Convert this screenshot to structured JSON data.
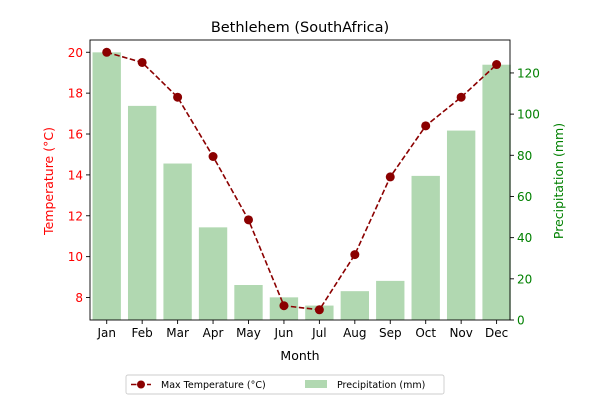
{
  "chart_data": {
    "type": "bar+line",
    "title": "Bethlehem (SouthAfrica)",
    "xlabel": "Month",
    "categories": [
      "Jan",
      "Feb",
      "Mar",
      "Apr",
      "May",
      "Jun",
      "Jul",
      "Aug",
      "Sep",
      "Oct",
      "Nov",
      "Dec"
    ],
    "left_axis": {
      "label": "Temperature (°C)",
      "ylim": [
        6.9,
        20.6
      ],
      "ticks": [
        8,
        10,
        12,
        14,
        16,
        18,
        20
      ],
      "color": "#ff0000"
    },
    "right_axis": {
      "label": "Precipitation (mm)",
      "ylim": [
        0,
        136
      ],
      "ticks": [
        0,
        20,
        40,
        60,
        80,
        100,
        120
      ],
      "color": "#008000"
    },
    "series": [
      {
        "name": "Max Temperature (°C)",
        "kind": "line",
        "axis": "left",
        "color": "#8b0000",
        "values": [
          20.0,
          19.5,
          17.8,
          14.9,
          11.8,
          7.6,
          7.4,
          10.1,
          13.9,
          16.4,
          17.8,
          19.4
        ]
      },
      {
        "name": "Precipitation (mm)",
        "kind": "bar",
        "axis": "right",
        "color": "#b1d8b1",
        "values": [
          130,
          104,
          76,
          45,
          17,
          11,
          7,
          14,
          19,
          70,
          92,
          124
        ]
      }
    ],
    "legend": {
      "placement": "bottom-center"
    }
  }
}
